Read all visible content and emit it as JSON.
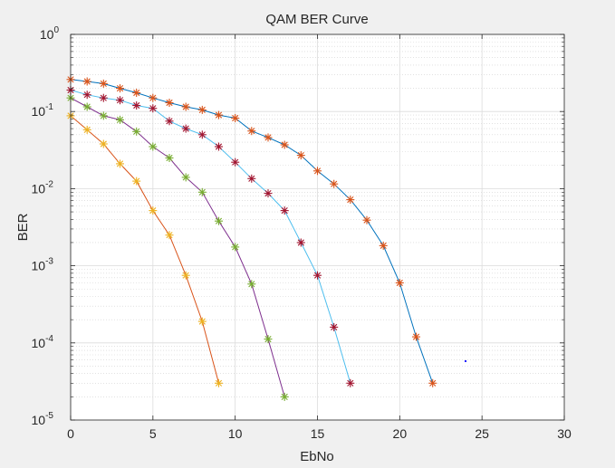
{
  "chart_data": {
    "type": "line",
    "title": "QAM BER Curve",
    "xlabel": "EbNo",
    "ylabel": "BER",
    "xlim": [
      0,
      30
    ],
    "ylim": [
      1e-05,
      1
    ],
    "yscale": "log",
    "grid": true,
    "minor_grid": true,
    "x_ticks": [
      {
        "value": 0,
        "label": "0"
      },
      {
        "value": 5,
        "label": "5"
      },
      {
        "value": 10,
        "label": "10"
      },
      {
        "value": 15,
        "label": "15"
      },
      {
        "value": 20,
        "label": "20"
      },
      {
        "value": 25,
        "label": "25"
      },
      {
        "value": 30,
        "label": "30"
      }
    ],
    "y_ticks": [
      {
        "value": 1e-05,
        "mant": "10",
        "exp": "-5"
      },
      {
        "value": 0.0001,
        "mant": "10",
        "exp": "-4"
      },
      {
        "value": 0.001,
        "mant": "10",
        "exp": "-3"
      },
      {
        "value": 0.01,
        "mant": "10",
        "exp": "-2"
      },
      {
        "value": 0.1,
        "mant": "10",
        "exp": "-1"
      },
      {
        "value": 1,
        "mant": "10",
        "exp": "0"
      }
    ],
    "series": [
      {
        "line_color": "#d95319",
        "marker_color": "#edb120",
        "x": [
          0,
          1,
          2,
          3,
          4,
          5,
          6,
          7,
          8,
          9
        ],
        "values": [
          0.088,
          0.058,
          0.038,
          0.021,
          0.0125,
          0.0052,
          0.0025,
          0.00075,
          0.00019,
          3e-05
        ]
      },
      {
        "line_color": "#7e2f8e",
        "marker_color": "#77ac30",
        "x": [
          0,
          1,
          2,
          3,
          4,
          5,
          6,
          7,
          8,
          9,
          10,
          11,
          12,
          13
        ],
        "values": [
          0.15,
          0.115,
          0.088,
          0.078,
          0.055,
          0.035,
          0.025,
          0.014,
          0.009,
          0.0038,
          0.00175,
          0.00058,
          0.000112,
          2e-05
        ]
      },
      {
        "line_color": "#4dbeee",
        "marker_color": "#a2142f",
        "x": [
          0,
          1,
          2,
          3,
          4,
          5,
          6,
          7,
          8,
          9,
          10,
          11,
          12,
          13,
          14,
          15,
          16,
          17
        ],
        "values": [
          0.19,
          0.165,
          0.15,
          0.14,
          0.12,
          0.11,
          0.075,
          0.06,
          0.05,
          0.035,
          0.022,
          0.0135,
          0.0087,
          0.0052,
          0.002,
          0.00075,
          0.00016,
          3e-05
        ]
      },
      {
        "line_color": "#0072bd",
        "marker_color": "#d95319",
        "x": [
          0,
          1,
          2,
          3,
          4,
          5,
          6,
          7,
          8,
          9,
          10,
          11,
          12,
          13,
          14,
          15,
          16,
          17,
          18,
          19,
          20,
          21,
          22
        ],
        "values": [
          0.26,
          0.245,
          0.23,
          0.2,
          0.175,
          0.15,
          0.13,
          0.115,
          0.105,
          0.09,
          0.082,
          0.056,
          0.046,
          0.037,
          0.027,
          0.017,
          0.0115,
          0.0072,
          0.0039,
          0.00182,
          0.0006,
          0.00012,
          3e-05
        ]
      }
    ],
    "stray_point": {
      "x": 24,
      "value": 5.8e-05,
      "color": "#0000ff"
    }
  }
}
